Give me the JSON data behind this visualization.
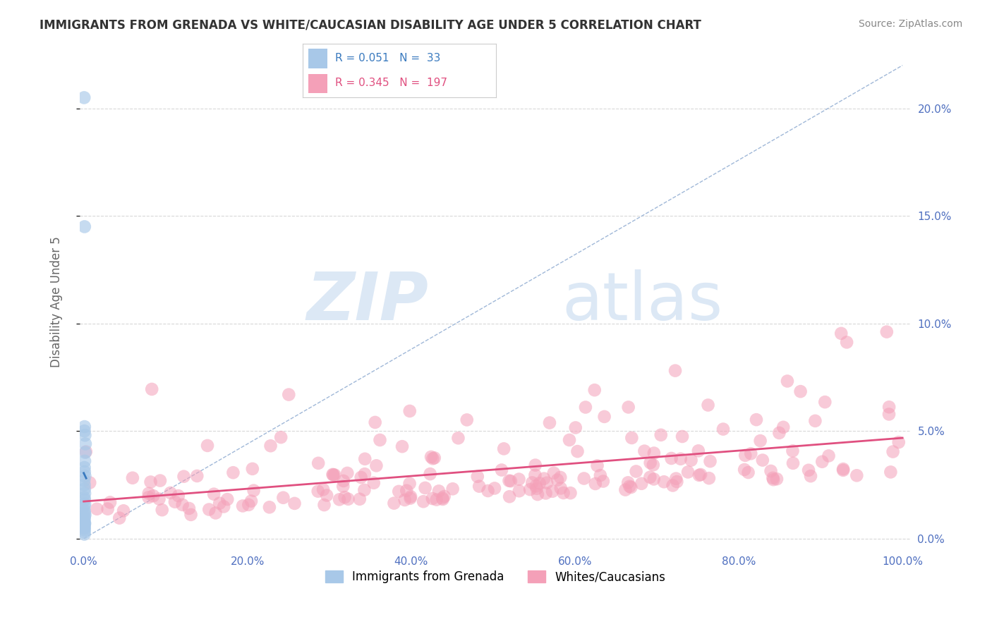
{
  "title": "IMMIGRANTS FROM GRENADA VS WHITE/CAUCASIAN DISABILITY AGE UNDER 5 CORRELATION CHART",
  "source": "Source: ZipAtlas.com",
  "ylabel": "Disability Age Under 5",
  "watermark_zip": "ZIP",
  "watermark_atlas": "atlas",
  "legend_label_1": "Immigrants from Grenada",
  "legend_label_2": "Whites/Caucasians",
  "r1": "0.051",
  "n1": "33",
  "r2": "0.345",
  "n2": "197",
  "color_blue": "#a8c8e8",
  "color_pink": "#f4a0b8",
  "color_blue_line": "#3a7abf",
  "color_pink_line": "#e05080",
  "color_ref_line": "#a0b8d8",
  "yaxis_color": "#5070c0",
  "xaxis_color": "#5070c0",
  "title_color": "#333333",
  "source_color": "#888888",
  "grid_color": "#d8d8d8",
  "legend_border_color": "#cccccc",
  "pink_scatter_seed": 123
}
